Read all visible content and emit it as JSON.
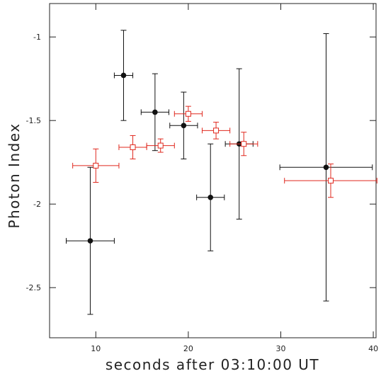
{
  "chart_data": {
    "type": "scatter",
    "xlabel": "seconds after 03:10:00 UT",
    "ylabel": "Photon Index",
    "xlim": [
      5,
      40.3
    ],
    "ylim": [
      -2.8,
      -0.8
    ],
    "xticks": [
      10,
      20,
      30,
      40
    ],
    "yticks": [
      -1,
      -1.5,
      -2,
      -2.5
    ],
    "series": [
      {
        "color": "#111111",
        "marker": "circle",
        "x": [
          9.4,
          13,
          16.4,
          19.5,
          22.4,
          25.5,
          34.9
        ],
        "values": [
          -2.22,
          -1.23,
          -1.45,
          -1.53,
          -1.96,
          -1.64,
          -1.78
        ],
        "xerr": [
          2.6,
          1,
          1.5,
          1.5,
          1.5,
          1.5,
          5
        ],
        "yerr": [
          0.44,
          0.27,
          0.23,
          0.2,
          0.32,
          0.45,
          0.8
        ]
      },
      {
        "color": "#e0281e",
        "marker": "square",
        "x": [
          10,
          14,
          17,
          20,
          23,
          26,
          35.4
        ],
        "values": [
          -1.77,
          -1.66,
          -1.65,
          -1.46,
          -1.56,
          -1.64,
          -1.86
        ],
        "xerr": [
          2.5,
          1.5,
          1.5,
          1.5,
          1.5,
          1.5,
          5
        ],
        "yerr": [
          0.1,
          0.07,
          0.04,
          0.045,
          0.05,
          0.07,
          0.1
        ]
      }
    ]
  }
}
